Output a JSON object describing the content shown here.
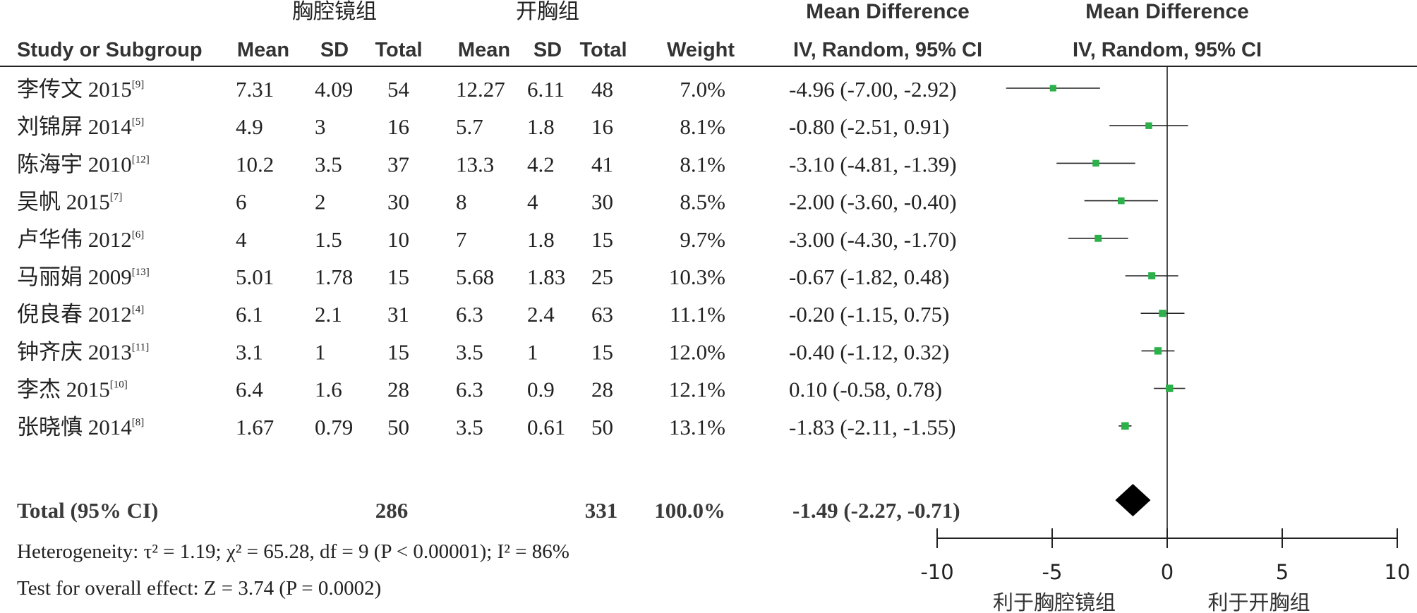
{
  "header": {
    "group1": "胸腔镜组",
    "group2": "开胸组",
    "md_col": "Mean Difference",
    "md_plot": "Mean Difference",
    "study_col": "Study or Subgroup",
    "mean1": "Mean",
    "sd1": "SD",
    "total1": "Total",
    "mean2": "Mean",
    "sd2": "SD",
    "total2": "Total",
    "weight": "Weight",
    "method_col": "IV, Random, 95% CI",
    "method_plot": "IV, Random, 95% CI"
  },
  "studies": [
    {
      "name": "李传文 2015",
      "ref": "[9]",
      "m1": "7.31",
      "sd1": "4.09",
      "n1": "54",
      "m2": "12.27",
      "sd2": "6.11",
      "n2": "48",
      "weight": "7.0%",
      "ci_text": "-4.96 (-7.00, -2.92)"
    },
    {
      "name": "刘锦屏 2014",
      "ref": "[5]",
      "m1": "4.9",
      "sd1": "3",
      "n1": "16",
      "m2": "5.7",
      "sd2": "1.8",
      "n2": "16",
      "weight": "8.1%",
      "ci_text": "-0.80 (-2.51, 0.91)"
    },
    {
      "name": "陈海宇 2010",
      "ref": "[12]",
      "m1": "10.2",
      "sd1": "3.5",
      "n1": "37",
      "m2": "13.3",
      "sd2": "4.2",
      "n2": "41",
      "weight": "8.1%",
      "ci_text": "-3.10 (-4.81, -1.39)"
    },
    {
      "name": "吴帆 2015",
      "ref": "[7]",
      "m1": "6",
      "sd1": "2",
      "n1": "30",
      "m2": "8",
      "sd2": "4",
      "n2": "30",
      "weight": "8.5%",
      "ci_text": "-2.00 (-3.60, -0.40)"
    },
    {
      "name": "卢华伟 2012",
      "ref": "[6]",
      "m1": "4",
      "sd1": "1.5",
      "n1": "10",
      "m2": "7",
      "sd2": "1.8",
      "n2": "15",
      "weight": "9.7%",
      "ci_text": "-3.00 (-4.30, -1.70)"
    },
    {
      "name": "马丽娟 2009",
      "ref": "[13]",
      "m1": "5.01",
      "sd1": "1.78",
      "n1": "15",
      "m2": "5.68",
      "sd2": "1.83",
      "n2": "25",
      "weight": "10.3%",
      "ci_text": "-0.67 (-1.82, 0.48)"
    },
    {
      "name": "倪良春 2012",
      "ref": "[4]",
      "m1": "6.1",
      "sd1": "2.1",
      "n1": "31",
      "m2": "6.3",
      "sd2": "2.4",
      "n2": "63",
      "weight": "11.1%",
      "ci_text": "-0.20 (-1.15, 0.75)"
    },
    {
      "name": "钟齐庆 2013",
      "ref": "[11]",
      "m1": "3.1",
      "sd1": "1",
      "n1": "15",
      "m2": "3.5",
      "sd2": "1",
      "n2": "15",
      "weight": "12.0%",
      "ci_text": "-0.40 (-1.12, 0.32)"
    },
    {
      "name": "李杰 2015",
      "ref": "[10]",
      "m1": "6.4",
      "sd1": "1.6",
      "n1": "28",
      "m2": "6.3",
      "sd2": "0.9",
      "n2": "28",
      "weight": "12.1%",
      "ci_text": "0.10 (-0.58, 0.78)"
    },
    {
      "name": "张晓慎 2014",
      "ref": "[8]",
      "m1": "1.67",
      "sd1": "0.79",
      "n1": "50",
      "m2": "3.5",
      "sd2": "0.61",
      "n2": "50",
      "weight": "13.1%",
      "ci_text": "-1.83 (-2.11, -1.55)"
    }
  ],
  "total": {
    "label": "Total (95% CI)",
    "n1": "286",
    "n2": "331",
    "weight": "100.0%",
    "ci_text": "-1.49 (-2.27, -0.71)"
  },
  "footer": {
    "heterogeneity": "Heterogeneity: τ² = 1.19; χ² = 65.28, df = 9 (P < 0.00001); I² = 86%",
    "overall": "Test for overall effect: Z = 3.74 (P = 0.0002)"
  },
  "axis": {
    "favors_left": "利于胸腔镜组",
    "favors_right": "利于开胸组"
  },
  "colors": {
    "marker": "#2bb04a",
    "diamond": "#000000",
    "line": "#222222"
  },
  "chart_data": {
    "type": "forest",
    "xlim": [
      -10,
      10
    ],
    "ticks": [
      -10,
      -5,
      0,
      5,
      10
    ],
    "tick_labels": [
      "-10",
      "-5",
      "0",
      "5",
      "10"
    ],
    "null_line": 0,
    "studies": [
      {
        "md": -4.96,
        "lo": -7.0,
        "hi": -2.92,
        "weight": 7.0
      },
      {
        "md": -0.8,
        "lo": -2.51,
        "hi": 0.91,
        "weight": 8.1
      },
      {
        "md": -3.1,
        "lo": -4.81,
        "hi": -1.39,
        "weight": 8.1
      },
      {
        "md": -2.0,
        "lo": -3.6,
        "hi": -0.4,
        "weight": 8.5
      },
      {
        "md": -3.0,
        "lo": -4.3,
        "hi": -1.7,
        "weight": 9.7
      },
      {
        "md": -0.67,
        "lo": -1.82,
        "hi": 0.48,
        "weight": 10.3
      },
      {
        "md": -0.2,
        "lo": -1.15,
        "hi": 0.75,
        "weight": 11.1
      },
      {
        "md": -0.4,
        "lo": -1.12,
        "hi": 0.32,
        "weight": 12.0
      },
      {
        "md": 0.1,
        "lo": -0.58,
        "hi": 0.78,
        "weight": 12.1
      },
      {
        "md": -1.83,
        "lo": -2.11,
        "hi": -1.55,
        "weight": 13.1
      }
    ],
    "pooled": {
      "md": -1.49,
      "lo": -2.27,
      "hi": -0.71,
      "weight": 100.0
    }
  }
}
